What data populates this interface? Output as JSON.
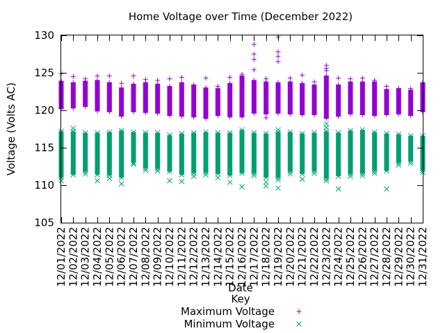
{
  "chart_data": {
    "type": "scatter",
    "title": "Home Voltage over Time (December 2022)",
    "xlabel": "Date",
    "ylabel": "Voltage (Volts AC)",
    "ylim": [
      105,
      130
    ],
    "yticks": [
      105,
      110,
      115,
      120,
      125,
      130
    ],
    "grid": false,
    "legend_title": "Key",
    "legend_position": "bottom-center",
    "categories": [
      "12/01/2022",
      "12/02/2022",
      "12/03/2022",
      "12/04/2022",
      "12/05/2022",
      "12/06/2022",
      "12/07/2022",
      "12/08/2022",
      "12/09/2022",
      "12/10/2022",
      "12/11/2022",
      "12/12/2022",
      "12/13/2022",
      "12/14/2022",
      "12/15/2022",
      "12/16/2022",
      "12/17/2022",
      "12/18/2022",
      "12/19/2022",
      "12/20/2022",
      "12/21/2022",
      "12/22/2022",
      "12/23/2022",
      "12/24/2022",
      "12/25/2022",
      "12/26/2022",
      "12/27/2022",
      "12/28/2022",
      "12/29/2022",
      "12/30/2022",
      "12/31/2022"
    ],
    "series": [
      {
        "name": "Maximum Voltage",
        "marker": "plus",
        "color": "#9400d3",
        "low": [
          120.2,
          120.3,
          120.5,
          119.9,
          119.8,
          119.2,
          119.8,
          119.7,
          119.6,
          119.3,
          119.2,
          119.1,
          118.9,
          119.3,
          119.1,
          119.1,
          119.6,
          119.5,
          119.6,
          119.5,
          119.4,
          119.4,
          118.9,
          119.2,
          119.5,
          119.4,
          119.3,
          119.4,
          119.5,
          119.3,
          119.8
        ],
        "high": [
          123.9,
          123.7,
          123.9,
          124.0,
          123.7,
          123.0,
          123.5,
          123.7,
          123.5,
          123.2,
          123.7,
          123.4,
          123.0,
          122.9,
          123.6,
          124.6,
          124.0,
          123.8,
          123.7,
          123.8,
          123.6,
          123.4,
          124.6,
          123.4,
          123.8,
          123.8,
          123.8,
          122.8,
          122.9,
          122.7,
          123.7
        ],
        "outliers": [
          [
            0,
            124.9
          ],
          [
            1,
            124.5
          ],
          [
            2,
            124.2
          ],
          [
            3,
            124.6
          ],
          [
            4,
            124.6
          ],
          [
            5,
            123.6
          ],
          [
            6,
            124.6
          ],
          [
            7,
            124.1
          ],
          [
            8,
            124.0
          ],
          [
            9,
            124.2
          ],
          [
            10,
            124.4
          ],
          [
            11,
            123.3
          ],
          [
            12,
            124.3
          ],
          [
            13,
            123.2
          ],
          [
            14,
            124.4
          ],
          [
            15,
            124.8
          ],
          [
            16,
            128.8
          ],
          [
            16,
            127.5
          ],
          [
            16,
            126.8
          ],
          [
            16,
            125.4
          ],
          [
            17,
            124.2
          ],
          [
            17,
            119.0
          ],
          [
            18,
            129.8
          ],
          [
            18,
            127.8
          ],
          [
            18,
            127.2
          ],
          [
            18,
            126.5
          ],
          [
            19,
            124.3
          ],
          [
            20,
            124.7
          ],
          [
            21,
            123.8
          ],
          [
            22,
            126.0
          ],
          [
            22,
            125.6
          ],
          [
            22,
            125.3
          ],
          [
            23,
            124.3
          ],
          [
            24,
            124.2
          ],
          [
            25,
            124.3
          ],
          [
            26,
            124.0
          ],
          [
            27,
            123.2
          ],
          [
            28,
            122.9
          ],
          [
            29,
            122.9
          ]
        ]
      },
      {
        "name": "Minimum Voltage",
        "marker": "cross",
        "color": "#009e73",
        "low": [
          111.0,
          111.4,
          111.8,
          111.4,
          111.3,
          111.0,
          113.0,
          112.3,
          112.2,
          111.8,
          111.4,
          111.6,
          111.7,
          111.5,
          111.3,
          111.6,
          111.6,
          111.0,
          111.0,
          111.8,
          111.5,
          111.9,
          110.9,
          111.2,
          111.5,
          111.6,
          111.9,
          111.9,
          113.0,
          113.2,
          112.0
        ],
        "high": [
          117.2,
          117.2,
          117.0,
          117.0,
          117.1,
          117.3,
          117.1,
          117.0,
          117.0,
          116.7,
          116.9,
          117.0,
          117.1,
          117.0,
          117.0,
          117.4,
          117.0,
          116.9,
          117.1,
          117.1,
          116.9,
          117.0,
          117.2,
          117.0,
          117.3,
          117.4,
          117.1,
          116.9,
          116.8,
          116.6,
          116.6
        ],
        "outliers": [
          [
            0,
            110.6
          ],
          [
            1,
            117.6
          ],
          [
            2,
            111.5
          ],
          [
            3,
            110.6
          ],
          [
            4,
            110.9
          ],
          [
            5,
            110.2
          ],
          [
            6,
            112.8
          ],
          [
            7,
            112.0
          ],
          [
            8,
            111.9
          ],
          [
            9,
            110.6
          ],
          [
            10,
            110.5
          ],
          [
            11,
            111.2
          ],
          [
            12,
            111.4
          ],
          [
            13,
            111.0
          ],
          [
            14,
            110.4
          ],
          [
            15,
            109.8
          ],
          [
            16,
            111.3
          ],
          [
            17,
            109.9
          ],
          [
            17,
            110.4
          ],
          [
            18,
            109.6
          ],
          [
            18,
            110.7
          ],
          [
            18,
            117.4
          ],
          [
            19,
            111.5
          ],
          [
            20,
            110.8
          ],
          [
            21,
            111.6
          ],
          [
            22,
            110.6
          ],
          [
            22,
            118.2
          ],
          [
            22,
            117.7
          ],
          [
            23,
            109.5
          ],
          [
            24,
            111.2
          ],
          [
            25,
            111.3
          ],
          [
            26,
            111.6
          ],
          [
            27,
            109.5
          ],
          [
            28,
            112.7
          ],
          [
            29,
            112.9
          ],
          [
            30,
            111.7
          ]
        ]
      }
    ]
  }
}
